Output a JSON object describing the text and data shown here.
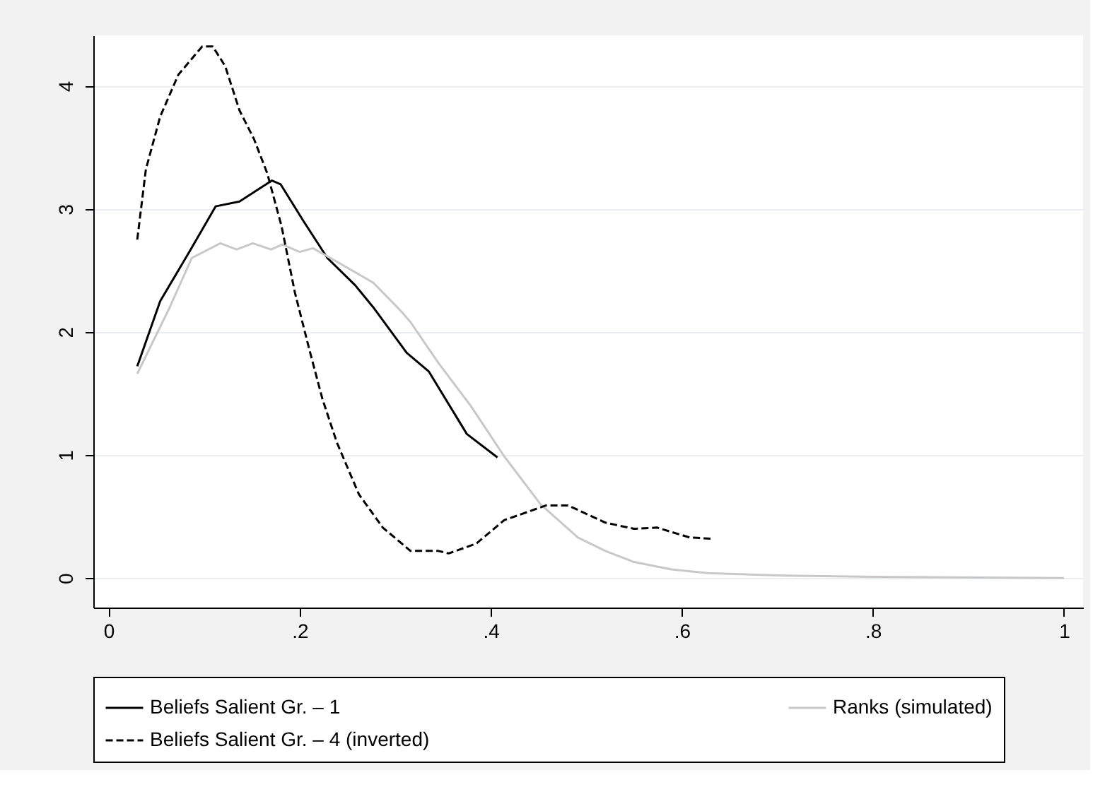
{
  "chart_data": {
    "type": "line",
    "xlim": [
      -0.016,
      1.02
    ],
    "xticks": [
      0,
      {
        "value": 0.2,
        "label": ".2"
      },
      {
        "value": 0.4,
        "label": ".4"
      },
      {
        "value": 0.6,
        "label": ".6"
      },
      {
        "value": 0.8,
        "label": ".8"
      },
      1
    ],
    "ylim": [
      -0.24,
      4.41
    ],
    "yticks": [
      0,
      1,
      2,
      3,
      4
    ],
    "grid": "y",
    "legend": "bottom",
    "series": [
      {
        "name": "Beliefs Salient Gr. – 1",
        "color": "#000000",
        "line_style": "solid",
        "x": [
          0.03,
          0.054,
          0.086,
          0.112,
          0.137,
          0.171,
          0.18,
          0.204,
          0.229,
          0.258,
          0.277,
          0.312,
          0.335,
          0.375,
          0.407
        ],
        "values": [
          1.72,
          2.25,
          2.67,
          3.02,
          3.06,
          3.23,
          3.2,
          2.9,
          2.6,
          2.38,
          2.2,
          1.83,
          1.68,
          1.17,
          0.98
        ]
      },
      {
        "name": "Ranks (simulated)",
        "color": "#c8c8c8",
        "line_style": "solid",
        "x": [
          0.03,
          0.064,
          0.087,
          0.117,
          0.134,
          0.151,
          0.17,
          0.182,
          0.2,
          0.214,
          0.239,
          0.277,
          0.306,
          0.316,
          0.345,
          0.379,
          0.414,
          0.452,
          0.491,
          0.52,
          0.55,
          0.589,
          0.627,
          0.706,
          0.8,
          1.0
        ],
        "values": [
          1.66,
          2.2,
          2.6,
          2.72,
          2.67,
          2.72,
          2.67,
          2.71,
          2.65,
          2.68,
          2.57,
          2.4,
          2.17,
          2.08,
          1.75,
          1.4,
          0.99,
          0.6,
          0.33,
          0.22,
          0.13,
          0.07,
          0.04,
          0.02,
          0.01,
          0.0
        ]
      },
      {
        "name": "Beliefs Salient Gr. – 4 (inverted)",
        "color": "#000000",
        "line_style": "dashed",
        "x": [
          0.03,
          0.039,
          0.054,
          0.073,
          0.098,
          0.109,
          0.122,
          0.137,
          0.152,
          0.166,
          0.181,
          0.195,
          0.21,
          0.224,
          0.239,
          0.262,
          0.287,
          0.316,
          0.345,
          0.356,
          0.385,
          0.414,
          0.458,
          0.481,
          0.52,
          0.55,
          0.574,
          0.608,
          0.63
        ],
        "values": [
          2.75,
          3.32,
          3.75,
          4.09,
          4.32,
          4.32,
          4.16,
          3.8,
          3.57,
          3.29,
          2.86,
          2.32,
          1.86,
          1.45,
          1.1,
          0.68,
          0.41,
          0.22,
          0.22,
          0.2,
          0.28,
          0.47,
          0.59,
          0.59,
          0.45,
          0.4,
          0.41,
          0.33,
          0.32
        ]
      }
    ]
  }
}
